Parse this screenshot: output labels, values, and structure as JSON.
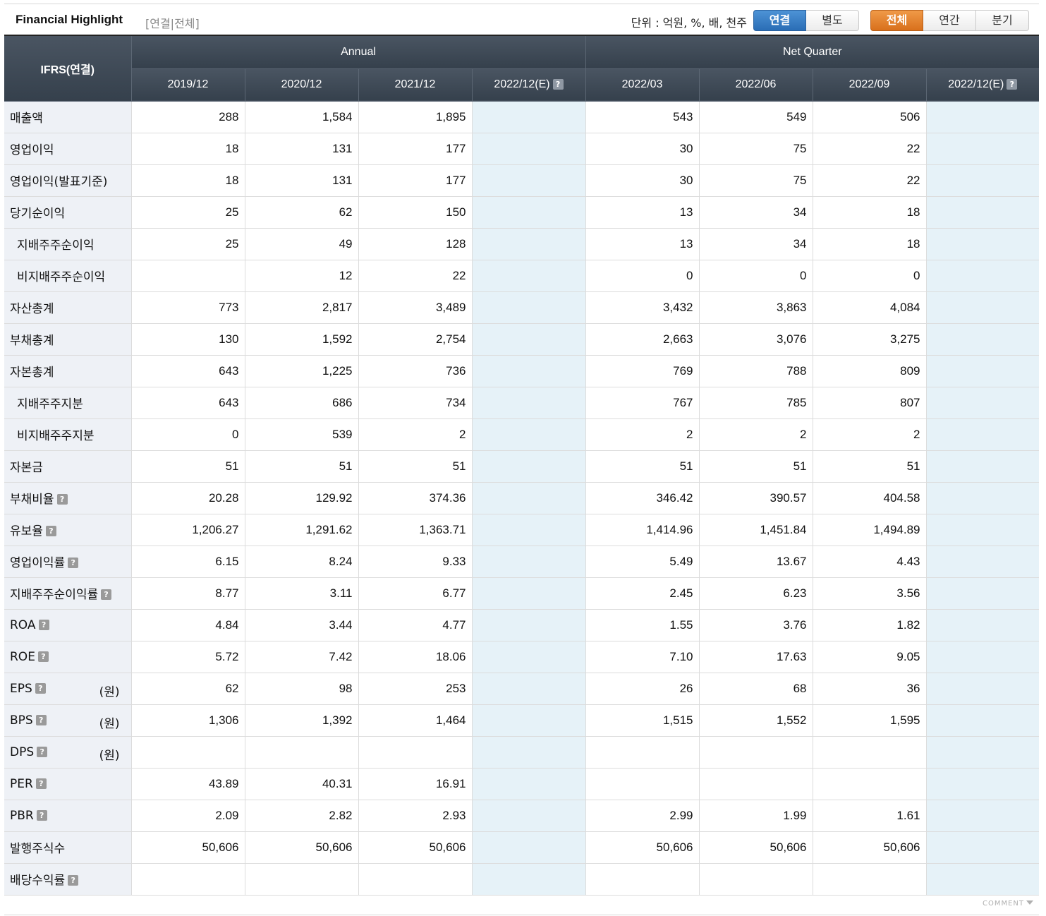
{
  "header": {
    "title": "Financial Highlight",
    "subtitle": "[연결|전체]",
    "unit": "단위 : 억원, %, 배, 천주",
    "group1": [
      "연결",
      "별도"
    ],
    "group2": [
      "전체",
      "연간",
      "분기"
    ]
  },
  "table": {
    "corner": "IFRS(연결)",
    "annual_label": "Annual",
    "quarter_label": "Net Quarter",
    "annual_periods": [
      "2019/12",
      "2020/12",
      "2021/12",
      "2022/12(E)"
    ],
    "quarter_periods": [
      "2022/03",
      "2022/06",
      "2022/09",
      "2022/12(E)"
    ],
    "rows": [
      {
        "label": "매출액",
        "values": [
          "288",
          "1,584",
          "1,895",
          "",
          "543",
          "549",
          "506",
          ""
        ]
      },
      {
        "label": "영업이익",
        "values": [
          "18",
          "131",
          "177",
          "",
          "30",
          "75",
          "22",
          ""
        ]
      },
      {
        "label": "영업이익(발표기준)",
        "values": [
          "18",
          "131",
          "177",
          "",
          "30",
          "75",
          "22",
          ""
        ]
      },
      {
        "label": "당기순이익",
        "values": [
          "25",
          "62",
          "150",
          "",
          "13",
          "34",
          "18",
          ""
        ]
      },
      {
        "label": "지배주주순이익",
        "indent": true,
        "values": [
          "25",
          "49",
          "128",
          "",
          "13",
          "34",
          "18",
          ""
        ]
      },
      {
        "label": "비지배주주순이익",
        "indent": true,
        "values": [
          "",
          "12",
          "22",
          "",
          "0",
          "0",
          "0",
          ""
        ]
      },
      {
        "label": "자산총계",
        "values": [
          "773",
          "2,817",
          "3,489",
          "",
          "3,432",
          "3,863",
          "4,084",
          ""
        ]
      },
      {
        "label": "부채총계",
        "values": [
          "130",
          "1,592",
          "2,754",
          "",
          "2,663",
          "3,076",
          "3,275",
          ""
        ]
      },
      {
        "label": "자본총계",
        "values": [
          "643",
          "1,225",
          "736",
          "",
          "769",
          "788",
          "809",
          ""
        ]
      },
      {
        "label": "지배주주지분",
        "indent": true,
        "values": [
          "643",
          "686",
          "734",
          "",
          "767",
          "785",
          "807",
          ""
        ]
      },
      {
        "label": "비지배주주지분",
        "indent": true,
        "values": [
          "0",
          "539",
          "2",
          "",
          "2",
          "2",
          "2",
          ""
        ]
      },
      {
        "label": "자본금",
        "values": [
          "51",
          "51",
          "51",
          "",
          "51",
          "51",
          "51",
          ""
        ]
      },
      {
        "label": "부채비율",
        "help": true,
        "values": [
          "20.28",
          "129.92",
          "374.36",
          "",
          "346.42",
          "390.57",
          "404.58",
          ""
        ]
      },
      {
        "label": "유보율",
        "help": true,
        "values": [
          "1,206.27",
          "1,291.62",
          "1,363.71",
          "",
          "1,414.96",
          "1,451.84",
          "1,494.89",
          ""
        ]
      },
      {
        "label": "영업이익률",
        "help": true,
        "values": [
          "6.15",
          "8.24",
          "9.33",
          "",
          "5.49",
          "13.67",
          "4.43",
          ""
        ]
      },
      {
        "label": "지배주주순이익률",
        "help": true,
        "values": [
          "8.77",
          "3.11",
          "6.77",
          "",
          "2.45",
          "6.23",
          "3.56",
          ""
        ]
      },
      {
        "label": "ROA",
        "help": true,
        "values": [
          "4.84",
          "3.44",
          "4.77",
          "",
          "1.55",
          "3.76",
          "1.82",
          ""
        ]
      },
      {
        "label": "ROE",
        "help": true,
        "values": [
          "5.72",
          "7.42",
          "18.06",
          "",
          "7.10",
          "17.63",
          "9.05",
          ""
        ]
      },
      {
        "label": "EPS",
        "help": true,
        "unit": "(원)",
        "values": [
          "62",
          "98",
          "253",
          "",
          "26",
          "68",
          "36",
          ""
        ]
      },
      {
        "label": "BPS",
        "help": true,
        "unit": "(원)",
        "values": [
          "1,306",
          "1,392",
          "1,464",
          "",
          "1,515",
          "1,552",
          "1,595",
          ""
        ]
      },
      {
        "label": "DPS",
        "help": true,
        "unit": "(원)",
        "values": [
          "",
          "",
          "",
          "",
          "",
          "",
          "",
          ""
        ]
      },
      {
        "label": "PER",
        "help": true,
        "values": [
          "43.89",
          "40.31",
          "16.91",
          "",
          "",
          "",
          "",
          ""
        ]
      },
      {
        "label": "PBR",
        "help": true,
        "values": [
          "2.09",
          "2.82",
          "2.93",
          "",
          "2.99",
          "1.99",
          "1.61",
          ""
        ]
      },
      {
        "label": "발행주식수",
        "values": [
          "50,606",
          "50,606",
          "50,606",
          "",
          "50,606",
          "50,606",
          "50,606",
          ""
        ]
      },
      {
        "label": "배당수익률",
        "help": true,
        "values": [
          "",
          "",
          "",
          "",
          "",
          "",
          "",
          ""
        ]
      }
    ]
  },
  "help_glyph": "?",
  "footer": {
    "comment": "COMMENT"
  }
}
